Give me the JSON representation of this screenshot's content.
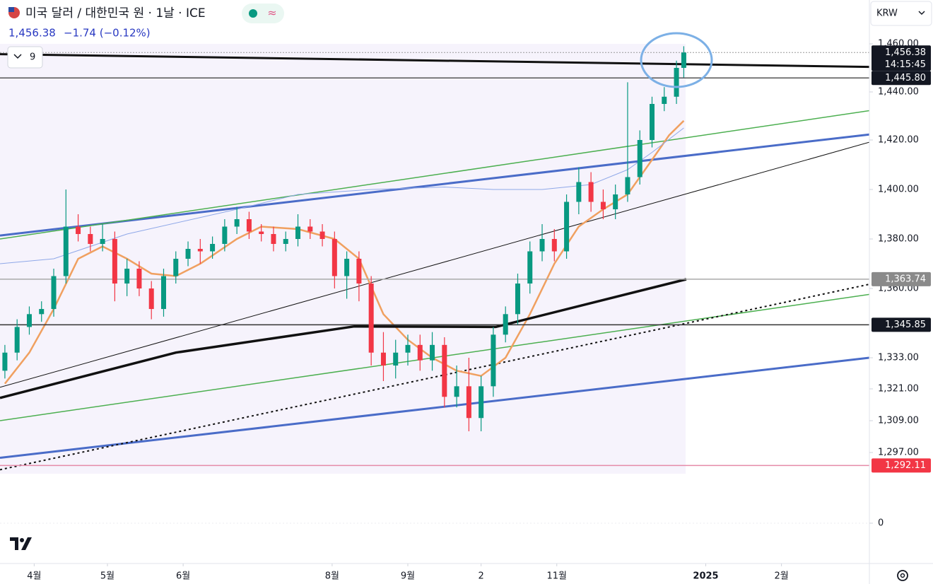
{
  "header": {
    "title": "미국 달러 / 대한민국 원 · 1날 · ICE",
    "price": "1,456.38",
    "change": "−1.74 (−0.12%)",
    "currency": "KRW",
    "indicator_count": "9"
  },
  "chart_data": {
    "type": "candlestick",
    "up_color": "#089981",
    "down_color": "#f23645",
    "xlim": [
      78,
      434
    ],
    "xticks": [
      {
        "value": 92,
        "label": "4월"
      },
      {
        "value": 122,
        "label": "5월"
      },
      {
        "value": 153,
        "label": "6월"
      },
      {
        "value": 214,
        "label": "8월"
      },
      {
        "value": 245,
        "label": "9월"
      },
      {
        "value": 275,
        "label": "2"
      },
      {
        "value": 306,
        "label": "11월"
      },
      {
        "value": 367,
        "label": "2025"
      },
      {
        "value": 398,
        "label": "2월"
      }
    ],
    "yticks": [
      {
        "value": 1460,
        "label": "1,460.00"
      },
      {
        "value": 1440,
        "label": "1,440.00"
      },
      {
        "value": 1420,
        "label": "1,420.00"
      },
      {
        "value": 1400,
        "label": "1,400.00"
      },
      {
        "value": 1380,
        "label": "1,380.00"
      },
      {
        "value": 1360,
        "label": "1,360.00"
      },
      {
        "value": 1333,
        "label": "1,333.00"
      },
      {
        "value": 1321,
        "label": "1,321.00"
      },
      {
        "value": 1309,
        "label": "1,309.00"
      },
      {
        "value": 1297,
        "label": "1,297.00"
      },
      0
    ],
    "x": [
      80,
      85,
      90,
      95,
      100,
      105,
      110,
      115,
      120,
      125,
      130,
      135,
      140,
      145,
      150,
      155,
      160,
      165,
      170,
      175,
      180,
      185,
      190,
      195,
      200,
      205,
      210,
      215,
      220,
      225,
      230,
      235,
      240,
      245,
      250,
      255,
      260,
      265,
      270,
      275,
      280,
      285,
      290,
      295,
      300,
      305,
      310,
      315,
      320,
      325,
      330,
      335,
      340,
      345,
      350,
      355,
      358
    ],
    "open": [
      1328,
      1335,
      1345,
      1350,
      1352,
      1365,
      1385,
      1382,
      1378,
      1380,
      1362,
      1368,
      1360,
      1352,
      1365,
      1372,
      1376,
      1375,
      1378,
      1385,
      1388,
      1383,
      1382,
      1378,
      1380,
      1385,
      1383,
      1380,
      1365,
      1372,
      1362,
      1335,
      1330,
      1335,
      1338,
      1332,
      1338,
      1318,
      1322,
      1310,
      1322,
      1342,
      1350,
      1362,
      1375,
      1380,
      1375,
      1395,
      1403,
      1395,
      1392,
      1398,
      1405,
      1420,
      1435,
      1438,
      1450
    ],
    "high": [
      1338,
      1348,
      1353,
      1355,
      1368,
      1400,
      1390,
      1385,
      1386,
      1383,
      1372,
      1371,
      1363,
      1368,
      1375,
      1379,
      1380,
      1381,
      1388,
      1393,
      1391,
      1386,
      1385,
      1383,
      1390,
      1388,
      1386,
      1383,
      1375,
      1375,
      1365,
      1343,
      1340,
      1342,
      1342,
      1343,
      1341,
      1330,
      1333,
      1326,
      1345,
      1353,
      1366,
      1379,
      1386,
      1384,
      1398,
      1409,
      1407,
      1400,
      1402,
      1444,
      1424,
      1438,
      1442,
      1453,
      1459
    ],
    "low": [
      1325,
      1332,
      1342,
      1347,
      1349,
      1362,
      1379,
      1375,
      1375,
      1355,
      1357,
      1357,
      1348,
      1349,
      1362,
      1369,
      1370,
      1372,
      1375,
      1382,
      1380,
      1379,
      1375,
      1375,
      1377,
      1380,
      1377,
      1360,
      1356,
      1355,
      1330,
      1324,
      1325,
      1330,
      1328,
      1328,
      1314,
      1314,
      1305,
      1305,
      1318,
      1339,
      1346,
      1358,
      1371,
      1371,
      1372,
      1390,
      1391,
      1388,
      1388,
      1395,
      1402,
      1417,
      1432,
      1435,
      1446
    ],
    "close": [
      1335,
      1345,
      1350,
      1352,
      1365,
      1385,
      1382,
      1378,
      1380,
      1362,
      1368,
      1360,
      1352,
      1365,
      1372,
      1376,
      1375,
      1378,
      1385,
      1388,
      1383,
      1382,
      1378,
      1380,
      1385,
      1383,
      1380,
      1365,
      1372,
      1362,
      1335,
      1330,
      1335,
      1338,
      1332,
      1338,
      1318,
      1322,
      1310,
      1322,
      1342,
      1350,
      1362,
      1375,
      1380,
      1375,
      1395,
      1403,
      1395,
      1392,
      1398,
      1405,
      1420,
      1435,
      1438,
      1450,
      1456.38
    ],
    "averages": [
      {
        "color": "#f0a060",
        "width": 2.5,
        "x": [
          80,
          90,
          100,
          110,
          120,
          130,
          140,
          150,
          160,
          175,
          185,
          200,
          215,
          225,
          235,
          245,
          255,
          265,
          275,
          285,
          295,
          305,
          315,
          325,
          335,
          345,
          352,
          358
        ],
        "values": [
          1323,
          1335,
          1352,
          1372,
          1377,
          1372,
          1366,
          1365,
          1370,
          1380,
          1385,
          1384,
          1380,
          1372,
          1350,
          1340,
          1333,
          1328,
          1326,
          1333,
          1350,
          1370,
          1385,
          1392,
          1398,
          1412,
          1422,
          1428
        ]
      },
      {
        "color": "#8fa8e8",
        "width": 1,
        "x": [
          78,
          100,
          130,
          175,
          200,
          230,
          260,
          280,
          300,
          320,
          335,
          345,
          358
        ],
        "values": [
          1370,
          1372,
          1382,
          1392,
          1398,
          1400,
          1401,
          1400,
          1400,
          1402,
          1408,
          1415,
          1425
        ]
      },
      {
        "color": "#111111",
        "width": 3.5,
        "x": [
          78,
          150,
          223,
          281,
          359
        ],
        "values": [
          1317.6,
          1335,
          1345.2,
          1345,
          1363.7
        ]
      }
    ],
    "trend_lines": [
      {
        "color": "#111111",
        "width": 3,
        "dash": false,
        "x": [
          78,
          434
        ],
        "values": [
          1455.7,
          1450.4
        ]
      },
      {
        "color": "#4a6cc8",
        "width": 3,
        "dash": false,
        "x": [
          78,
          434
        ],
        "values": [
          1381.4,
          1422.3
        ]
      },
      {
        "color": "#4caf50",
        "width": 1.5,
        "dash": false,
        "x": [
          78,
          434
        ],
        "values": [
          1380,
          1432.2
        ]
      },
      {
        "color": "#111111",
        "width": 1,
        "dash": false,
        "x": [
          78,
          434
        ],
        "values": [
          1321.6,
          1419.1
        ]
      },
      {
        "color": "#4caf50",
        "width": 1.5,
        "dash": false,
        "x": [
          78,
          434
        ],
        "values": [
          1309,
          1357.7
        ]
      },
      {
        "color": "#4a6cc8",
        "width": 3,
        "dash": false,
        "x": [
          78,
          434
        ],
        "values": [
          1295,
          1333
        ]
      },
      {
        "color": "#111111",
        "width": 2,
        "dash": true,
        "x": [
          78,
          434
        ],
        "values": [
          1290.5,
          1361.7
        ]
      }
    ],
    "price_lines": [
      {
        "value": 1456.38,
        "label": "1,456.38",
        "time": "14:15:45",
        "line_color": "#999999",
        "box_color": "#131722",
        "dotted": true
      },
      {
        "value": 1445.8,
        "label": "1,445.80",
        "line_color": "#555555",
        "box_color": "#131722",
        "dotted": false
      },
      {
        "value": 1363.74,
        "label": "1,363.74",
        "line_color": "#aaaaaa",
        "box_color": "#8a8a8a",
        "dotted": false
      },
      {
        "value": 1345.85,
        "label": "1,345.85",
        "line_color": "#333333",
        "box_color": "#131722",
        "dotted": false
      },
      {
        "value": 1292.11,
        "label": "1,292.11",
        "line_color": "#e58aa8",
        "box_color": "#f23645",
        "dotted": false
      }
    ]
  }
}
